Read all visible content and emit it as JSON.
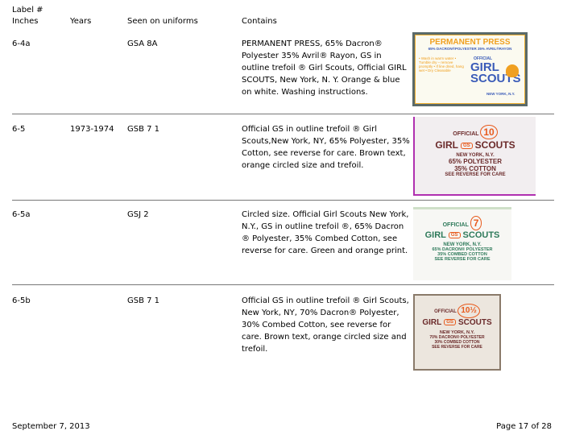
{
  "header": {
    "col1_line1": "Label #",
    "col1_line2": "Inches",
    "col2": "Years",
    "col3": "Seen on uniforms",
    "col4": "Contains"
  },
  "rows": [
    {
      "label": "6-4a",
      "years": "",
      "seen": "GSA 8A",
      "contains": "PERMANENT PRESS, 65% Dacron® Polyester 35% Avril® Rayon, GS in outline trefoil ® Girl Scouts, Official GIRL SCOUTS, New York, N. Y. Orange & blue on white. Washing instructions.",
      "tag": {
        "title": "PERMANENT PRESS",
        "line": "65% DACRON®POLYESTER 35% AVRIL®RAYON",
        "care": "• Wash in warm water • Tumble dry – remove promptly • If line dried, hang wet • Dry Cleanable",
        "official": "OFFICIAL",
        "girl": "GIRL",
        "scouts": "SCOUTS",
        "city": "NEW YORK, N.Y."
      }
    },
    {
      "label": "6-5",
      "years": "1973-1974",
      "seen": "GSB 7 1",
      "contains": "Official GS in outline trefoil ® Girl Scouts,New York, NY, 65% Polyester, 35% Cotton, see reverse for care. Brown text, orange circled size and trefoil.",
      "tag": {
        "size": "10",
        "official": "OFFICIAL",
        "girl": "GIRL",
        "gs": "GS",
        "scouts": "SCOUTS",
        "city": "NEW YORK, N.Y.",
        "fabric1": "65% POLYESTER",
        "fabric2": "35% COTTON",
        "care": "SEE REVERSE FOR CARE"
      }
    },
    {
      "label": "6-5a",
      "years": "",
      "seen": "GSJ 2",
      "contains": "Circled size. Official Girl Scouts New York, N.Y., GS in outline trefoil ®, 65% Dacron ® Polyester, 35% Combed Cotton, see reverse for care. Green and orange print.",
      "tag": {
        "size": "7",
        "official": "OFFICIAL",
        "girl": "GIRL",
        "gs": "GS",
        "scouts": "SCOUTS",
        "city": "NEW YORK, N.Y.",
        "fabric1": "65% DACRON® POLYESTER",
        "fabric2": "35% COMBED COTTON",
        "care": "SEE REVERSE FOR CARE"
      }
    },
    {
      "label": "6-5b",
      "years": "",
      "seen": "GSB 7 1",
      "contains": "Official GS in outline trefoil ® Girl Scouts, New York, NY, 70% Dacron® Polyester, 30% Combed Cotton, see reverse for care. Brown text, orange circled size and trefoil.",
      "tag": {
        "size": "10½",
        "official": "OFFICIAL",
        "girl": "GIRL",
        "gs": "GS",
        "scouts": "SCOUTS",
        "city": "NEW YORK, N.Y.",
        "fabric1": "70% DACRON® POLYESTER",
        "fabric2": "30% COMBED COTTON",
        "care": "SEE REVERSE FOR CARE"
      }
    }
  ],
  "footer": {
    "date": "September 7, 2013",
    "page": "Page 17 of 28"
  },
  "colors": {
    "orange": "#e85a1c",
    "blue": "#3a5bb8",
    "brown": "#6b2a2a",
    "green": "#2e7a5a"
  }
}
